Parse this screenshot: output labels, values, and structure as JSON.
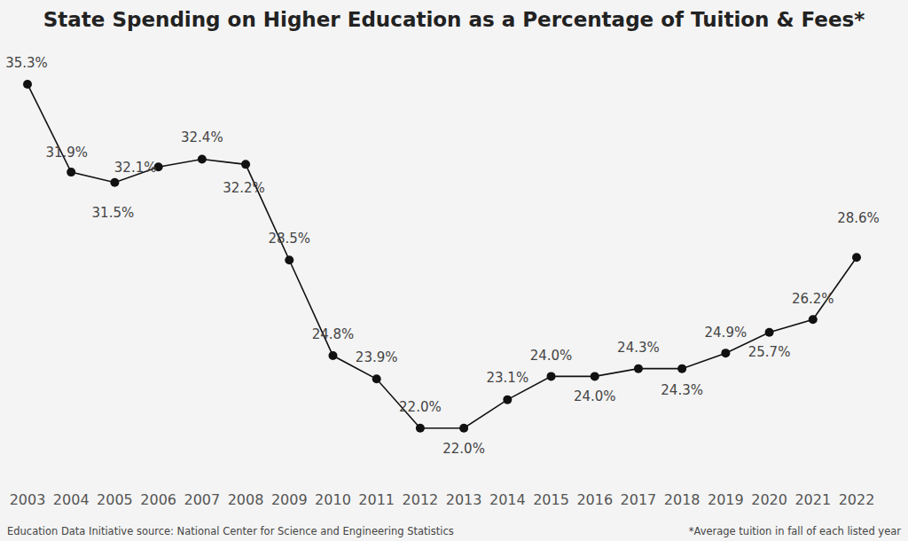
{
  "chart_data": {
    "type": "line",
    "title": "State Spending on Higher Education as a Percentage of Tuition & Fees*",
    "categories": [
      "2003",
      "2004",
      "2005",
      "2006",
      "2007",
      "2008",
      "2009",
      "2010",
      "2011",
      "2012",
      "2013",
      "2014",
      "2015",
      "2016",
      "2017",
      "2018",
      "2019",
      "2020",
      "2021",
      "2022"
    ],
    "values": [
      35.3,
      31.9,
      31.5,
      32.1,
      32.4,
      32.2,
      28.5,
      24.8,
      23.9,
      22.0,
      22.0,
      23.1,
      24.0,
      24.0,
      24.3,
      24.3,
      24.9,
      25.7,
      26.2,
      28.6
    ],
    "value_labels": [
      "35.3%",
      "31.9%",
      "31.5%",
      "32.1%",
      "32.4%",
      "32.2%",
      "28.5%",
      "24.8%",
      "23.9%",
      "22.0%",
      "22.0%",
      "23.1%",
      "24.0%",
      "24.0%",
      "24.3%",
      "24.3%",
      "24.9%",
      "25.7%",
      "26.2%",
      "28.6%"
    ],
    "color": "#111111",
    "marker": "circle",
    "line_style": "solid",
    "ylim": [
      20,
      36.5
    ],
    "data_labels": true,
    "tick_labels": "x",
    "grid": false,
    "source": "Education Data Initiative source: National Center for Science and Engineering Statistics",
    "footnote": "*Average tuition in fall of each listed year"
  }
}
